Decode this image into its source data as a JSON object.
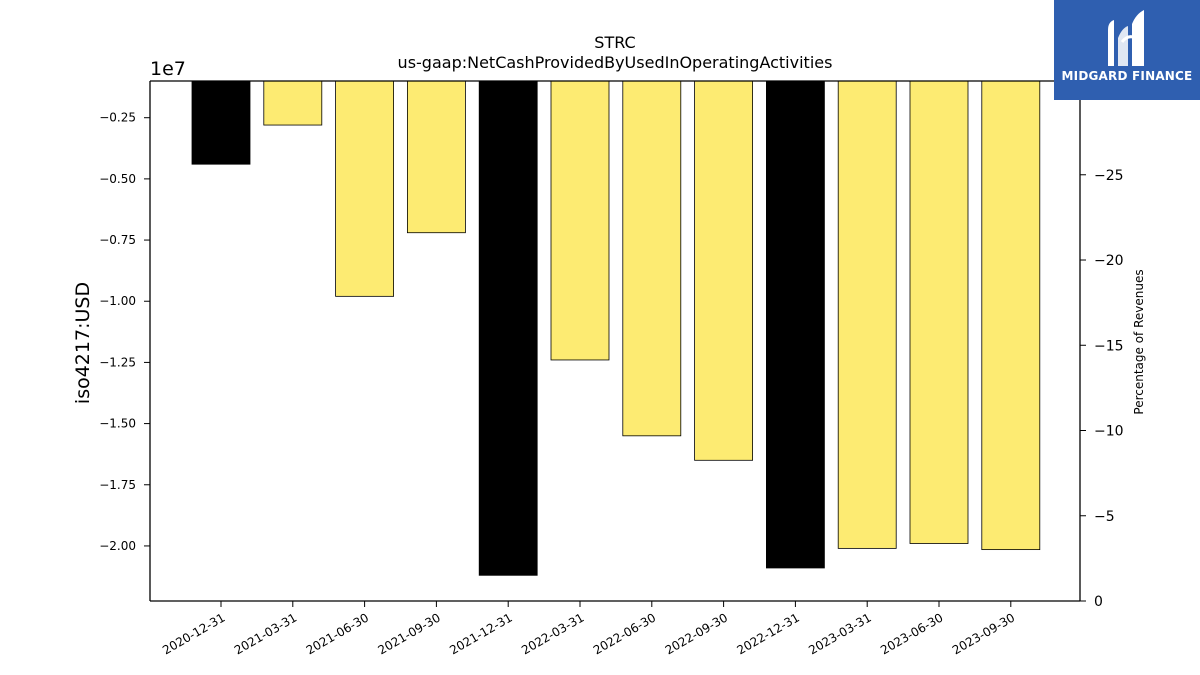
{
  "chart_data": {
    "type": "bar",
    "title": "STRC",
    "subtitle": "us-gaap:NetCashProvidedByUsedInOperatingActivities",
    "ylabel": "iso4217:USD",
    "y_offset_label": "1e7",
    "y2label": "Percentage of Revenues",
    "categories": [
      "2020-12-31",
      "2021-03-31",
      "2021-06-30",
      "2021-09-30",
      "2021-12-31",
      "2022-03-31",
      "2022-06-30",
      "2022-09-30",
      "2022-12-31",
      "2023-03-31",
      "2023-06-30",
      "2023-09-30"
    ],
    "values": [
      -4400000,
      -2800000,
      -9800000,
      -7200000,
      -21200000,
      -12400000,
      -15500000,
      -16500000,
      -20900000,
      -20100000,
      -19900000,
      -20150000
    ],
    "bar_colors": [
      "#000000",
      "#fdeb72",
      "#fdeb72",
      "#fdeb72",
      "#000000",
      "#fdeb72",
      "#fdeb72",
      "#fdeb72",
      "#000000",
      "#fdeb72",
      "#fdeb72",
      "#fdeb72"
    ],
    "ylim": [
      -22250000,
      -1000000
    ],
    "yticks": [
      -2.0,
      -1.75,
      -1.5,
      -1.25,
      -1.0,
      -0.75,
      -0.5,
      -0.25
    ],
    "y2lim": [
      0,
      -30.5
    ],
    "y2ticks": [
      0,
      -5,
      -10,
      -15,
      -20,
      -25
    ],
    "grid": false
  },
  "logo": {
    "text": "MIDGARD FINANCE",
    "background": "#2f5fb0"
  }
}
